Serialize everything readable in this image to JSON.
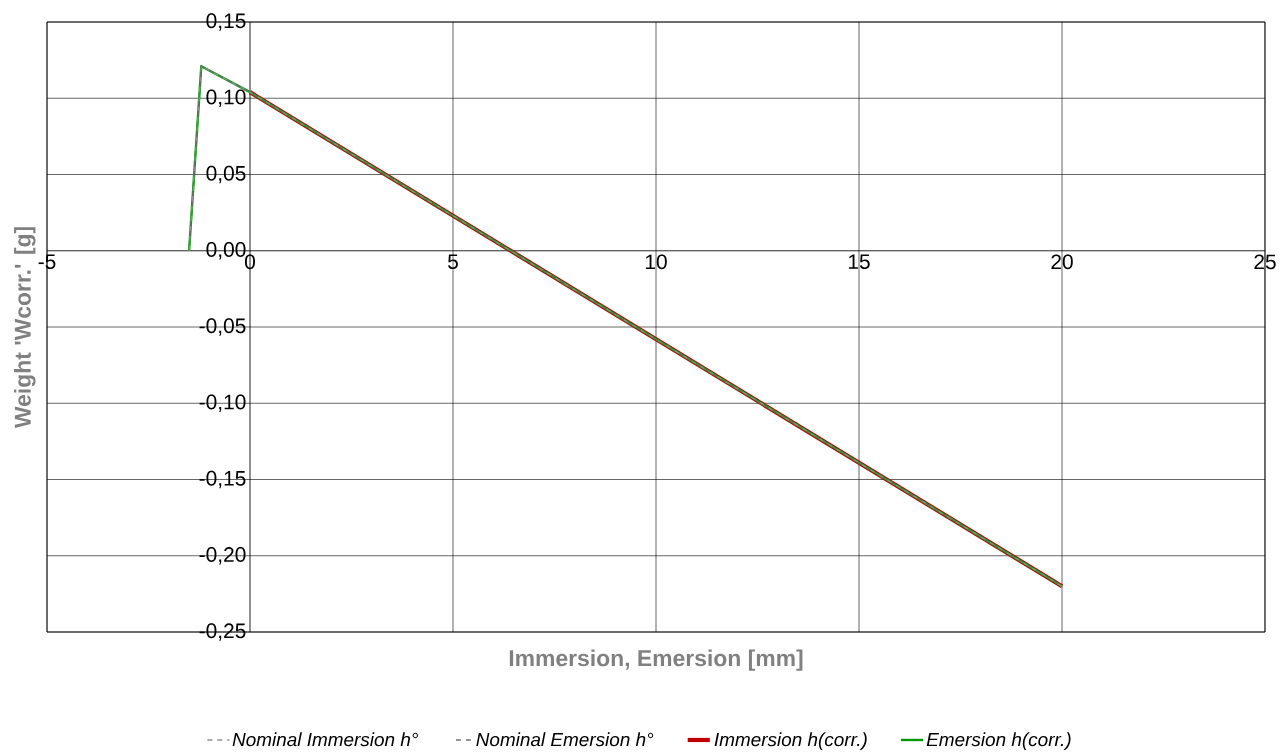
{
  "chart_data": {
    "type": "line",
    "xlabel": "Immersion, Emersion [mm]",
    "ylabel": "Weight 'Wcorr.' [g]",
    "xlim": [
      -5,
      25
    ],
    "xticks": [
      -5,
      0,
      5,
      10,
      15,
      20,
      25
    ],
    "ylim": [
      -0.25,
      0.15
    ],
    "yticks": [
      {
        "value": -0.25,
        "label": "-0,25"
      },
      {
        "value": -0.2,
        "label": "-0,20"
      },
      {
        "value": -0.15,
        "label": "-0,15"
      },
      {
        "value": -0.1,
        "label": "-0,10"
      },
      {
        "value": -0.05,
        "label": "-0,05"
      },
      {
        "value": 0,
        "label": "0,00"
      },
      {
        "value": 0.05,
        "label": "0,05"
      },
      {
        "value": 0.1,
        "label": "0,10"
      },
      {
        "value": 0.15,
        "label": "0,15"
      }
    ],
    "grid": true,
    "legend": "bottom",
    "series": [
      {
        "name": "Nominal Immersion h°",
        "color": "#909090",
        "line_style": "dashed",
        "x": [
          -1.5,
          -1.2,
          0,
          20
        ],
        "values": [
          0.0,
          0.121,
          0.104,
          -0.22
        ]
      },
      {
        "name": "Nominal Emersion h°",
        "color": "#707070",
        "line_style": "dashed",
        "x": [
          -1.5,
          -1.2,
          0,
          20
        ],
        "values": [
          0.0,
          0.121,
          0.104,
          -0.22
        ]
      },
      {
        "name": "Immersion h(corr.)",
        "color": "#c00000",
        "line_style": "solid",
        "x": [
          0,
          20
        ],
        "values": [
          0.104,
          -0.22
        ]
      },
      {
        "name": "Emersion h(corr.)",
        "color": "#009900",
        "line_style": "solid",
        "x": [
          -1.5,
          -1.2,
          0,
          20
        ],
        "values": [
          0.0,
          0.121,
          0.104,
          -0.22
        ]
      }
    ]
  }
}
